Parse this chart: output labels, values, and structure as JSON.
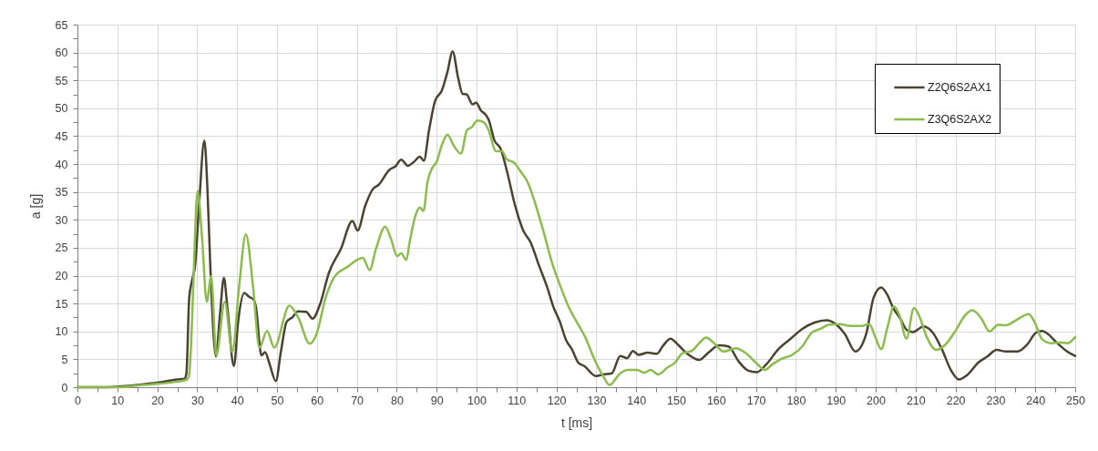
{
  "chart_data": {
    "type": "line",
    "xlabel": "t [ms]",
    "ylabel": "a [g]",
    "xlim": [
      0,
      250
    ],
    "ylim": [
      0,
      65
    ],
    "xticks": [
      0,
      {
        "value": 5,
        "label": null
      },
      10,
      {
        "value": 15,
        "label": null
      },
      20,
      {
        "value": 25,
        "label": null
      },
      30,
      {
        "value": 35,
        "label": null
      },
      40,
      {
        "value": 45,
        "label": null
      },
      50,
      {
        "value": 55,
        "label": null
      },
      60,
      {
        "value": 65,
        "label": null
      },
      70,
      {
        "value": 75,
        "label": null
      },
      80,
      {
        "value": 85,
        "label": null
      },
      90,
      {
        "value": 95,
        "label": null
      },
      100,
      {
        "value": 105,
        "label": null
      },
      110,
      {
        "value": 115,
        "label": null
      },
      120,
      {
        "value": 125,
        "label": null
      },
      130,
      {
        "value": 135,
        "label": null
      },
      140,
      {
        "value": 145,
        "label": null
      },
      150,
      {
        "value": 155,
        "label": null
      },
      160,
      {
        "value": 165,
        "label": null
      },
      170,
      {
        "value": 175,
        "label": null
      },
      180,
      {
        "value": 185,
        "label": null
      },
      190,
      {
        "value": 195,
        "label": null
      },
      200,
      {
        "value": 205,
        "label": null
      },
      210,
      {
        "value": 215,
        "label": null
      },
      220,
      {
        "value": 225,
        "label": null
      },
      230,
      {
        "value": 235,
        "label": null
      },
      240,
      {
        "value": 245,
        "label": null
      },
      250
    ],
    "yticks": [
      0,
      {
        "value": 2.5,
        "label": null
      },
      5,
      {
        "value": 7.5,
        "label": null
      },
      10,
      {
        "value": 12.5,
        "label": null
      },
      15,
      {
        "value": 17.5,
        "label": null
      },
      20,
      {
        "value": 22.5,
        "label": null
      },
      25,
      {
        "value": 27.5,
        "label": null
      },
      30,
      {
        "value": 32.5,
        "label": null
      },
      35,
      {
        "value": 37.5,
        "label": null
      },
      40,
      {
        "value": 42.5,
        "label": null
      },
      45,
      {
        "value": 47.5,
        "label": null
      },
      50,
      {
        "value": 52.5,
        "label": null
      },
      55,
      {
        "value": 57.5,
        "label": null
      },
      60,
      {
        "value": 62.5,
        "label": null
      },
      65
    ],
    "grid": true,
    "legend": "top right",
    "series": [
      {
        "name": "Z2Q6S2AX1",
        "color": "#4a4331",
        "x": [
          0,
          5,
          10,
          15,
          20,
          25,
          26.8,
          27.3,
          28.0,
          28.7,
          29.5,
          30.5,
          31.8,
          32.6,
          33.3,
          34.7,
          35.7,
          36.7,
          37.6,
          39.2,
          40.3,
          41.8,
          43,
          44,
          44.7,
          46.1,
          47,
          48,
          49.7,
          51,
          52.4,
          53.8,
          55.3,
          57.3,
          58.9,
          60.7,
          63,
          66,
          68.9,
          70.2,
          72.1,
          74,
          75.5,
          78.2,
          79.7,
          81.1,
          82.8,
          84.3,
          85.8,
          86.8,
          88.1,
          89.6,
          91.3,
          92.7,
          94,
          95.4,
          96.5,
          97.5,
          99,
          99.9,
          101.1,
          102.2,
          103,
          104.5,
          106,
          107.9,
          109.5,
          111.7,
          113.6,
          115.5,
          117.8,
          119.2,
          120.9,
          122.4,
          123.9,
          125.5,
          127,
          129.9,
          131.8,
          133.9,
          136,
          137.7,
          139.2,
          140.6,
          142.9,
          145.2,
          146.7,
          148.6,
          150.5,
          152.8,
          155.8,
          158.1,
          160.8,
          163.1,
          165.7,
          168,
          170.2,
          172.6,
          175.6,
          178.7,
          181.7,
          184.7,
          187.7,
          190,
          192.3,
          194.9,
          197.6,
          199.5,
          201.4,
          202.9,
          204.4,
          206,
          207.9,
          209.4,
          212,
          214.3,
          216.6,
          218.9,
          220.8,
          223.1,
          225.7,
          228,
          230.3,
          232.6,
          235.6,
          237.9,
          240.2,
          241.7,
          243.2,
          245.5,
          247.8,
          250
        ],
        "values": [
          0,
          0,
          0.1,
          0.4,
          0.8,
          1.4,
          1.5,
          2.5,
          16,
          19.1,
          22,
          33,
          44.2,
          35,
          21.5,
          5.5,
          13,
          19.6,
          14,
          3.8,
          12,
          16.9,
          16.2,
          15.8,
          14.5,
          5.7,
          6.3,
          4.5,
          1.1,
          6.5,
          11.7,
          12.5,
          13.6,
          13.5,
          12.3,
          14.7,
          20.5,
          24.8,
          29.8,
          28.1,
          32.5,
          35.5,
          36.3,
          39,
          39.6,
          40.8,
          39.7,
          40.4,
          41.3,
          40.6,
          46.1,
          51.3,
          53.2,
          56.5,
          60.2,
          55.4,
          52.6,
          52.5,
          50.7,
          51,
          49.6,
          48.9,
          48,
          44.2,
          42.8,
          37.9,
          33,
          28.1,
          25.9,
          22.1,
          17.7,
          14.5,
          11.7,
          8.5,
          6.8,
          4.4,
          3.8,
          2,
          2.3,
          2.5,
          5.6,
          5.2,
          6.5,
          5.8,
          6.2,
          6,
          7.4,
          8.7,
          7.6,
          6,
          4.9,
          6.2,
          7.5,
          7.3,
          4.6,
          3,
          2.7,
          4.1,
          6.8,
          8.7,
          10.5,
          11.6,
          12,
          11.3,
          9.5,
          6.4,
          9.5,
          16.1,
          17.9,
          16.6,
          14.2,
          12.5,
          10.2,
          9.9,
          10.9,
          9.8,
          6.8,
          3,
          1.4,
          2.3,
          4.4,
          5.5,
          6.7,
          6.4,
          6.4,
          7.6,
          9.8,
          10.1,
          9.5,
          7.9,
          6.5,
          5.6
        ]
      },
      {
        "name": "Z3Q6S2AX2",
        "color": "#8cbc4e",
        "x": [
          0,
          5,
          10,
          15,
          20,
          25,
          27.2,
          27.9,
          28.5,
          29.1,
          30.1,
          31.2,
          32.4,
          33.5,
          34.8,
          36.9,
          38.8,
          40.5,
          42.2,
          44,
          45.6,
          47.5,
          49.3,
          53.1,
          55.3,
          58.2,
          59.9,
          62.2,
          64.5,
          67.5,
          71.5,
          73.2,
          74.8,
          77.1,
          78.6,
          80.1,
          81.1,
          82.4,
          83.2,
          84.7,
          85.8,
          86.7,
          87.7,
          88.9,
          90,
          91.3,
          92.7,
          94.2,
          96.1,
          97.6,
          98.8,
          100.2,
          101.8,
          103,
          104.9,
          106.4,
          107.5,
          109.5,
          111,
          112.9,
          114.4,
          116.7,
          119,
          120.9,
          123.2,
          125.1,
          127.2,
          129.9,
          131.8,
          133.3,
          136,
          137.9,
          140.2,
          142.1,
          143.6,
          145.5,
          147.8,
          149.7,
          151.6,
          153.9,
          155.8,
          157.5,
          159.5,
          161.9,
          165,
          167.3,
          170.3,
          172.2,
          174.1,
          176.4,
          179.1,
          181.7,
          184,
          186.3,
          188.2,
          190.9,
          193.8,
          196.5,
          198.4,
          199.9,
          201.4,
          202.9,
          204.6,
          206,
          207.7,
          209.6,
          210.9,
          212.8,
          215.1,
          217.4,
          220,
          222.3,
          224.2,
          226.5,
          228.5,
          230.7,
          232.6,
          235.6,
          238.3,
          239.8,
          241.7,
          244,
          246.3,
          248.1,
          250
        ],
        "values": [
          0,
          0,
          0,
          0.3,
          0.6,
          1.0,
          1.3,
          1.9,
          8,
          19.9,
          35.2,
          27,
          15.3,
          19.9,
          5.7,
          15.3,
          6.3,
          18,
          27.4,
          18,
          7.1,
          10.1,
          7.1,
          14.6,
          12.5,
          7.8,
          9.5,
          16.1,
          19.9,
          21.5,
          23.2,
          21,
          24.8,
          28.8,
          26.5,
          23.5,
          24,
          22.8,
          25.9,
          30.8,
          32.2,
          31.6,
          36.8,
          39.3,
          40.4,
          43.4,
          45.3,
          43.4,
          41.9,
          46.1,
          46.6,
          47.8,
          47.5,
          46.1,
          42.3,
          42.3,
          40.9,
          40.2,
          38.7,
          36.6,
          33.6,
          28.1,
          22.1,
          18.3,
          14.2,
          11.7,
          9,
          4.4,
          1.9,
          0.4,
          2.5,
          3.1,
          3.1,
          2.6,
          3.1,
          2.3,
          3.5,
          4.4,
          6.1,
          6.5,
          7.9,
          8.9,
          7.9,
          6.4,
          7,
          6.2,
          4.2,
          3.1,
          4.1,
          5.1,
          5.8,
          7.4,
          9.8,
          10.5,
          11.2,
          11.3,
          11,
          11,
          11.3,
          9,
          6.8,
          10.6,
          14.5,
          12.8,
          8.7,
          14.2,
          12.8,
          9,
          6.7,
          7.6,
          10.1,
          12.8,
          13.8,
          12.3,
          10,
          11.2,
          11.1,
          12.2,
          13.1,
          11.7,
          8.6,
          7.9,
          8,
          7.9,
          9
        ]
      }
    ]
  }
}
